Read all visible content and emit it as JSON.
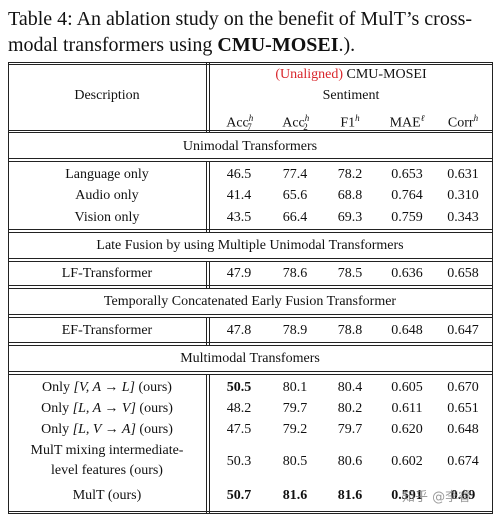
{
  "caption": {
    "label": "Table 4:",
    "text_prefix": " An ablation study on the benefit of MulT’s cross-modal transformers using ",
    "dataset_bold": "CMU-MOSEI",
    "text_suffix": ".)."
  },
  "header": {
    "description_label": "Description",
    "unaligned_label": "(Unaligned)",
    "dataset_label": "CMU-MOSEI",
    "task_label": "Sentiment",
    "columns": [
      {
        "base": "Acc",
        "sup": "h",
        "sub": "7"
      },
      {
        "base": "Acc",
        "sup": "h",
        "sub": "2"
      },
      {
        "base": "F1",
        "sup": "h",
        "sub": ""
      },
      {
        "base": "MAE",
        "sup": "ℓ",
        "sub": ""
      },
      {
        "base": "Corr",
        "sup": "h",
        "sub": ""
      }
    ]
  },
  "sections": {
    "unimodal": "Unimodal Transformers",
    "late_fusion": "Late Fusion by using Multiple Unimodal Transformers",
    "early_fusion": "Temporally Concatenated Early Fusion Transformer",
    "multimodal": "Multimodal Transfomers"
  },
  "rows": {
    "language": {
      "label": "Language only",
      "values": [
        "46.5",
        "77.4",
        "78.2",
        "0.653",
        "0.631"
      ]
    },
    "audio": {
      "label": "Audio only",
      "values": [
        "41.4",
        "65.6",
        "68.8",
        "0.764",
        "0.310"
      ]
    },
    "vision": {
      "label": "Vision only",
      "values": [
        "43.5",
        "66.4",
        "69.3",
        "0.759",
        "0.343"
      ]
    },
    "lf": {
      "label": "LF-Transformer",
      "values": [
        "47.9",
        "78.6",
        "78.5",
        "0.636",
        "0.658"
      ]
    },
    "ef": {
      "label": "EF-Transformer",
      "values": [
        "47.8",
        "78.9",
        "78.8",
        "0.648",
        "0.647"
      ]
    },
    "only_l": {
      "label_prefix": "Only ",
      "label_math": "[V, A → L]",
      "label_suffix": " (ours)",
      "values": [
        "50.5",
        "80.1",
        "80.4",
        "0.605",
        "0.670"
      ]
    },
    "only_v": {
      "label_prefix": "Only ",
      "label_math": "[L, A → V]",
      "label_suffix": " (ours)",
      "values": [
        "48.2",
        "79.7",
        "80.2",
        "0.611",
        "0.651"
      ]
    },
    "only_a": {
      "label_prefix": "Only ",
      "label_math": "[L, V → A]",
      "label_suffix": " (ours)",
      "values": [
        "47.5",
        "79.2",
        "79.7",
        "0.620",
        "0.648"
      ]
    },
    "mix": {
      "label_line1": "MulT mixing intermediate-",
      "label_line2": "level features (ours)",
      "values": [
        "50.3",
        "80.5",
        "80.6",
        "0.602",
        "0.674"
      ]
    },
    "mult": {
      "label": "MulT (ours)",
      "values": [
        "50.7",
        "81.6",
        "81.6",
        "0.591",
        "0.69"
      ]
    }
  },
  "watermark": "知乎 @李睿"
}
